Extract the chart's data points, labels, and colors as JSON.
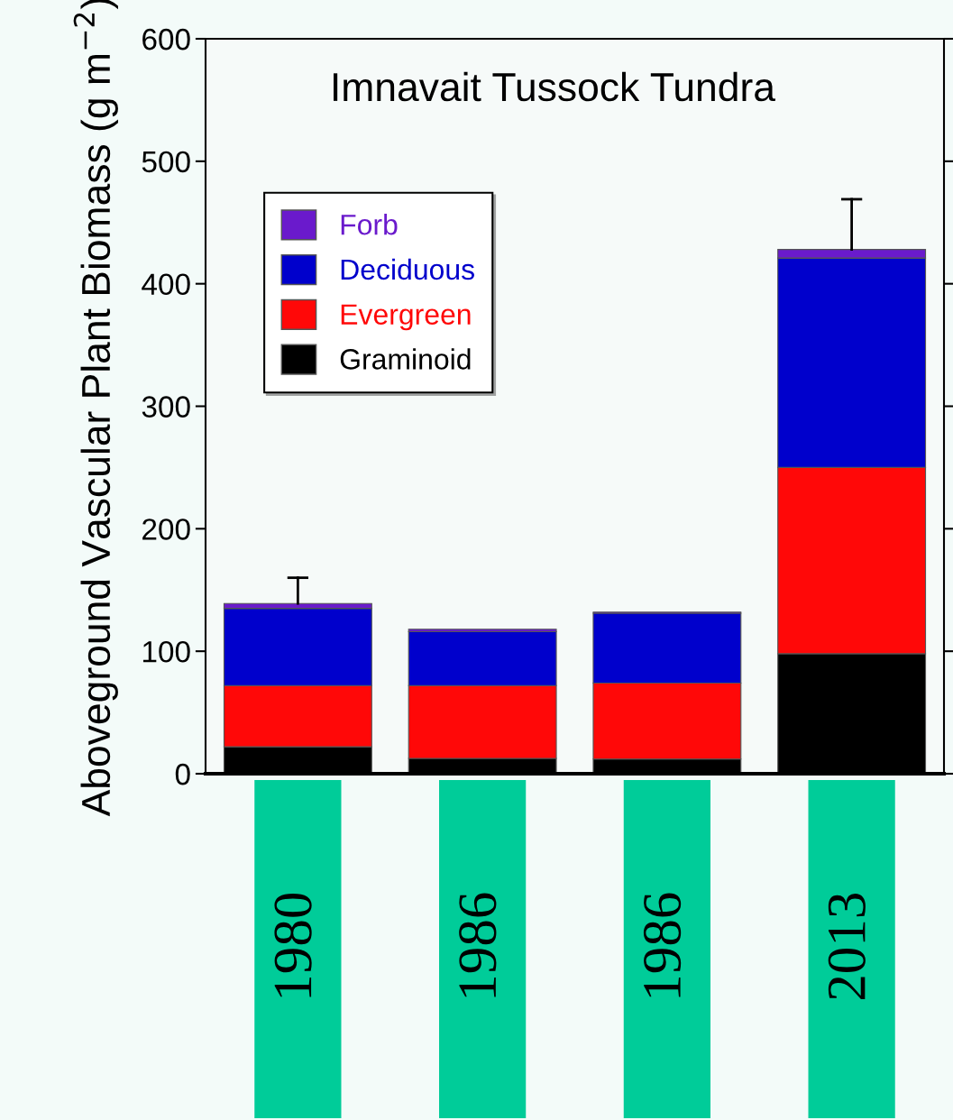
{
  "chart_data": {
    "type": "bar",
    "stacked": true,
    "title": "Imnavait Tussock Tundra",
    "ylabel": "Aboveground Vascular Plant Biomass (g m$^{−2}$)",
    "categories": [
      "1980",
      "1986",
      "1986",
      "2013"
    ],
    "series": [
      {
        "name": "Graminoid",
        "color": "#000000",
        "values": [
          22,
          12.5,
          12,
          98
        ]
      },
      {
        "name": "Evergreen",
        "color": "#ff0808",
        "values": [
          50,
          59.5,
          62,
          152
        ]
      },
      {
        "name": "Deciduous",
        "color": "#0000cc",
        "values": [
          63,
          44,
          57,
          171
        ]
      },
      {
        "name": "Forb",
        "color": "#6a1acc",
        "values": [
          4,
          2,
          1,
          7
        ],
        "errors": [
          [
            139,
            160
          ],
          null,
          null,
          [
            428,
            469
          ]
        ]
      }
    ],
    "ylim": [
      0,
      600
    ],
    "yticks": [
      0,
      100,
      200,
      300,
      400,
      500,
      600
    ],
    "grid": false,
    "legend": "top left"
  }
}
